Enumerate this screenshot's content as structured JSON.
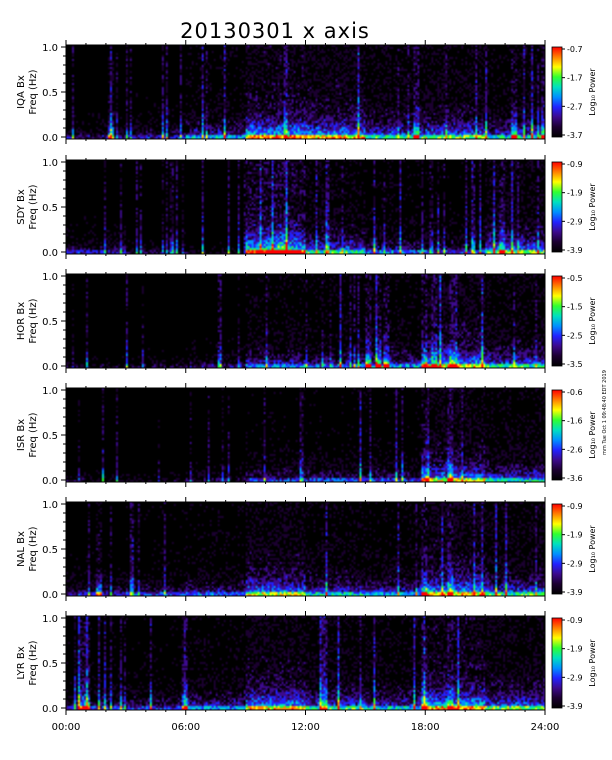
{
  "title": "20130301 x axis",
  "side_note": "mm Tue Oct 1 09:48:40 EDT 2019",
  "chart_data": {
    "type": "heatmap",
    "title": "20130301 x axis",
    "x_range": [
      "00:00",
      "24:00"
    ],
    "x_ticks": [
      "00:00",
      "06:00",
      "12:00",
      "18:00",
      "24:00"
    ],
    "y_range": [
      0,
      1.0
    ],
    "y_ticks": [
      "0.0",
      "0.5",
      "1.0"
    ],
    "colorbar_label": "Log₁₀ Power",
    "colormap": [
      "#000000",
      "#1b0030",
      "#3c0a8c",
      "#2222ff",
      "#0090ff",
      "#00e0c0",
      "#30ff30",
      "#ffff00",
      "#ff8000",
      "#ff0000"
    ],
    "panels": [
      {
        "station": "IQA",
        "ylabel1": "IQA Bx",
        "ylabel2": "Freq (Hz)",
        "cbar_ticks": [
          "-0.7",
          "-1.7",
          "-2.7",
          "-3.7"
        ],
        "seed": 11,
        "activity": [
          [
            0,
            3,
            0.25
          ],
          [
            3,
            6,
            0.3
          ],
          [
            6,
            9,
            0.45
          ],
          [
            9,
            12,
            0.75
          ],
          [
            12,
            15,
            0.7
          ],
          [
            15,
            18,
            0.55
          ],
          [
            18,
            21,
            0.6
          ],
          [
            21,
            24,
            0.5
          ]
        ],
        "bright_lines": [
          2.2,
          17.5,
          22.4,
          23.9
        ]
      },
      {
        "station": "SDY",
        "ylabel1": "SDY Bx",
        "ylabel2": "Freq (Hz)",
        "cbar_ticks": [
          "-0.9",
          "-1.9",
          "-2.9",
          "-3.9"
        ],
        "seed": 23,
        "activity": [
          [
            0,
            3,
            0.3
          ],
          [
            3,
            6,
            0.2
          ],
          [
            6,
            9,
            0.15
          ],
          [
            9,
            12,
            0.85
          ],
          [
            12,
            15,
            0.55
          ],
          [
            15,
            18,
            0.4
          ],
          [
            18,
            21,
            0.35
          ],
          [
            21,
            24,
            0.6
          ]
        ],
        "bright_lines": [
          10.6,
          10.9,
          21.8
        ]
      },
      {
        "station": "HOR",
        "ylabel1": "HOR Bx",
        "ylabel2": "Freq (Hz)",
        "cbar_ticks": [
          "-0.5",
          "-1.5",
          "-2.5",
          "-3.5"
        ],
        "seed": 37,
        "activity": [
          [
            0,
            3,
            0.15
          ],
          [
            3,
            6,
            0.2
          ],
          [
            6,
            9,
            0.25
          ],
          [
            9,
            12,
            0.45
          ],
          [
            12,
            15,
            0.4
          ],
          [
            15,
            18,
            0.45
          ],
          [
            18,
            21,
            0.7
          ],
          [
            21,
            24,
            0.55
          ]
        ],
        "bright_lines": [
          15.1,
          15.6,
          16.0,
          17.9,
          18.4,
          19.3
        ]
      },
      {
        "station": "ISR",
        "ylabel1": "ISR Bx",
        "ylabel2": "Freq (Hz)",
        "cbar_ticks": [
          "-0.6",
          "-1.6",
          "-2.6",
          "-3.6"
        ],
        "seed": 41,
        "activity": [
          [
            0,
            3,
            0.15
          ],
          [
            3,
            6,
            0.15
          ],
          [
            6,
            9,
            0.2
          ],
          [
            9,
            12,
            0.35
          ],
          [
            12,
            15,
            0.35
          ],
          [
            15,
            18,
            0.35
          ],
          [
            18,
            21,
            0.65
          ],
          [
            21,
            24,
            0.5
          ]
        ],
        "bright_lines": [
          17.9,
          19.2
        ]
      },
      {
        "station": "NAL",
        "ylabel1": "NAL Bx",
        "ylabel2": "Freq (Hz)",
        "cbar_ticks": [
          "-0.9",
          "-1.9",
          "-2.9",
          "-3.9"
        ],
        "seed": 53,
        "activity": [
          [
            0,
            3,
            0.3
          ],
          [
            3,
            6,
            0.35
          ],
          [
            6,
            9,
            0.4
          ],
          [
            9,
            12,
            0.65
          ],
          [
            12,
            15,
            0.5
          ],
          [
            15,
            18,
            0.45
          ],
          [
            18,
            21,
            0.7
          ],
          [
            21,
            24,
            0.55
          ]
        ],
        "bright_lines": [
          1.6,
          17.9,
          19.2
        ]
      },
      {
        "station": "LYR",
        "ylabel1": "LYR Bx",
        "ylabel2": "Freq (Hz)",
        "cbar_ticks": [
          "-0.9",
          "-1.9",
          "-2.9",
          "-3.9"
        ],
        "seed": 67,
        "activity": [
          [
            0,
            3,
            0.35
          ],
          [
            3,
            6,
            0.35
          ],
          [
            6,
            9,
            0.45
          ],
          [
            9,
            12,
            0.7
          ],
          [
            12,
            15,
            0.55
          ],
          [
            15,
            18,
            0.5
          ],
          [
            18,
            21,
            0.75
          ],
          [
            21,
            24,
            0.6
          ]
        ],
        "bright_lines": [
          0.7,
          1.0,
          5.9,
          17.9,
          19.2
        ]
      }
    ]
  }
}
